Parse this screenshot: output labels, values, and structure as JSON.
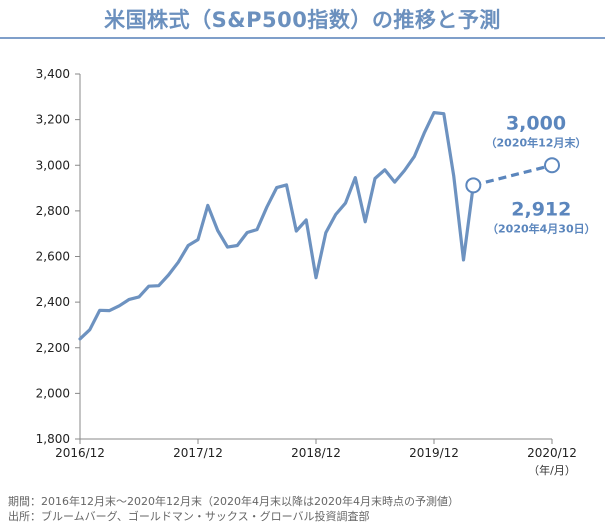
{
  "title": "米国株式（S&P500指数）の推移と予測",
  "chart_data": {
    "type": "line",
    "yticks": [
      1800,
      2000,
      2200,
      2400,
      2600,
      2800,
      3000,
      3200,
      3400
    ],
    "ytick_labels": [
      "1,800",
      "2,000",
      "2,200",
      "2,400",
      "2,600",
      "2,800",
      "3,000",
      "3,200",
      "3,400"
    ],
    "ylim": [
      1800,
      3400
    ],
    "xticks": [
      "2016-12",
      "2017-12",
      "2018-12",
      "2019-12",
      "2020-12"
    ],
    "xtick_labels": [
      "2016/12",
      "2017/12",
      "2018/12",
      "2019/12",
      "2020/12"
    ],
    "x_unit": "（年/月）",
    "series": [
      {
        "style": "solid",
        "color": "#6d92c0",
        "x": [
          "2016-12",
          "2017-01",
          "2017-02",
          "2017-03",
          "2017-04",
          "2017-05",
          "2017-06",
          "2017-07",
          "2017-08",
          "2017-09",
          "2017-10",
          "2017-11",
          "2017-12",
          "2018-01",
          "2018-02",
          "2018-03",
          "2018-04",
          "2018-05",
          "2018-06",
          "2018-07",
          "2018-08",
          "2018-09",
          "2018-10",
          "2018-11",
          "2018-12",
          "2019-01",
          "2019-02",
          "2019-03",
          "2019-04",
          "2019-05",
          "2019-06",
          "2019-07",
          "2019-08",
          "2019-09",
          "2019-10",
          "2019-11",
          "2019-12",
          "2020-01",
          "2020-02",
          "2020-03",
          "2020-04"
        ],
        "y": [
          2239,
          2279,
          2364,
          2363,
          2384,
          2412,
          2423,
          2470,
          2472,
          2519,
          2575,
          2648,
          2674,
          2824,
          2714,
          2641,
          2648,
          2705,
          2718,
          2816,
          2902,
          2914,
          2712,
          2760,
          2507,
          2704,
          2784,
          2834,
          2946,
          2752,
          2942,
          2980,
          2926,
          2977,
          3038,
          3141,
          3231,
          3226,
          2954,
          2585,
          2912
        ]
      },
      {
        "style": "dashed",
        "color": "#5b86bd",
        "x": [
          "2020-04",
          "2020-12"
        ],
        "y": [
          2912,
          3000
        ]
      }
    ],
    "annotations": [
      {
        "value": "3,000",
        "label": "（2020年12月末）",
        "x": "2020-12",
        "y": 3000
      },
      {
        "value": "2,912",
        "label": "（2020年4月30日）",
        "x": "2020-04",
        "y": 2912
      }
    ]
  },
  "footer": {
    "period": "期間：2016年12月末～2020年12月末（2020年4月末以降は2020年4月末時点の予測値）",
    "source": "出所：ブルームバーグ、ゴールドマン・サックス・グローバル投資調査部"
  }
}
